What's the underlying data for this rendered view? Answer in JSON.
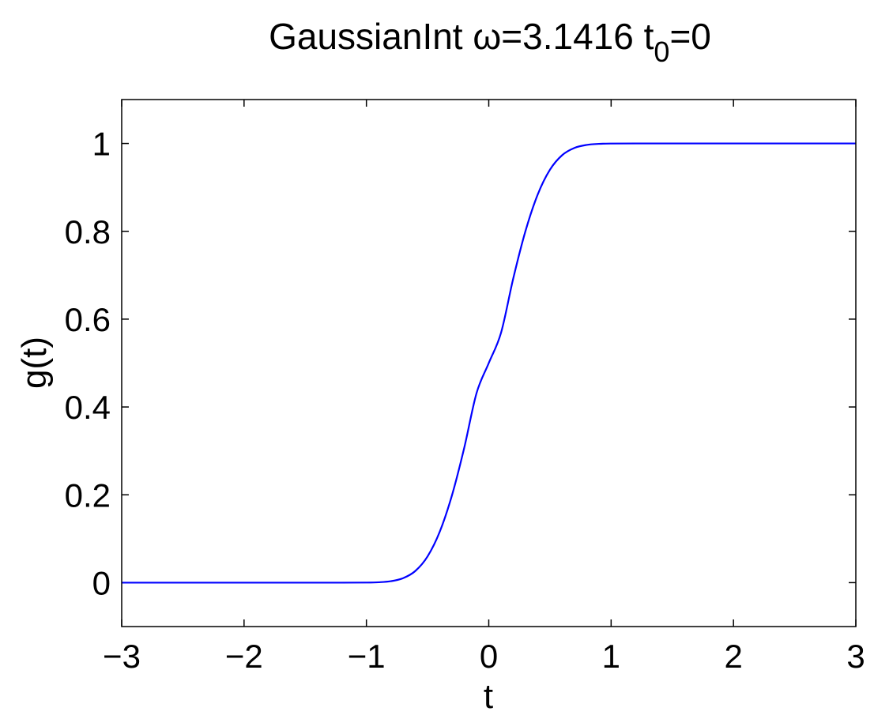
{
  "chart_data": {
    "type": "line",
    "title": "GaussianInt ω=3.1416 t₀=0",
    "title_parts": {
      "main": "GaussianInt ω=3.1416 t",
      "subscript": "0",
      "suffix": "=0"
    },
    "xlabel": "t",
    "ylabel": "g(t)",
    "xlim": [
      -3,
      3
    ],
    "ylim": [
      -0.1,
      1.1
    ],
    "x_ticks": [
      -3,
      -2,
      -1,
      0,
      1,
      2,
      3
    ],
    "x_tick_labels": [
      "−3",
      "−2",
      "−1",
      "0",
      "1",
      "2",
      "3"
    ],
    "y_ticks": [
      0,
      0.2,
      0.4,
      0.6,
      0.8,
      1
    ],
    "y_tick_labels": [
      "0",
      "0.2",
      "0.4",
      "0.6",
      "0.8",
      "1"
    ],
    "grid": false,
    "series": [
      {
        "color": "#0000ff",
        "x": [
          -3.0,
          -1.5,
          -1.2,
          -1.0,
          -0.9,
          -0.8,
          -0.7,
          -0.6,
          -0.5,
          -0.4,
          -0.3,
          -0.2,
          -0.1,
          0.0,
          0.1,
          0.2,
          0.3,
          0.4,
          0.5,
          0.6,
          0.7,
          0.8,
          0.9,
          1.0,
          1.2,
          1.5,
          3.0
        ],
        "y": [
          0.0,
          0.0,
          0.0,
          0.0002,
          0.0009,
          0.0033,
          0.0102,
          0.0266,
          0.0598,
          0.1163,
          0.1995,
          0.3075,
          0.4314,
          0.5,
          0.5686,
          0.6925,
          0.8005,
          0.8837,
          0.9402,
          0.9734,
          0.9898,
          0.9967,
          0.9991,
          0.9998,
          1.0,
          1.0,
          1.0
        ]
      }
    ]
  }
}
